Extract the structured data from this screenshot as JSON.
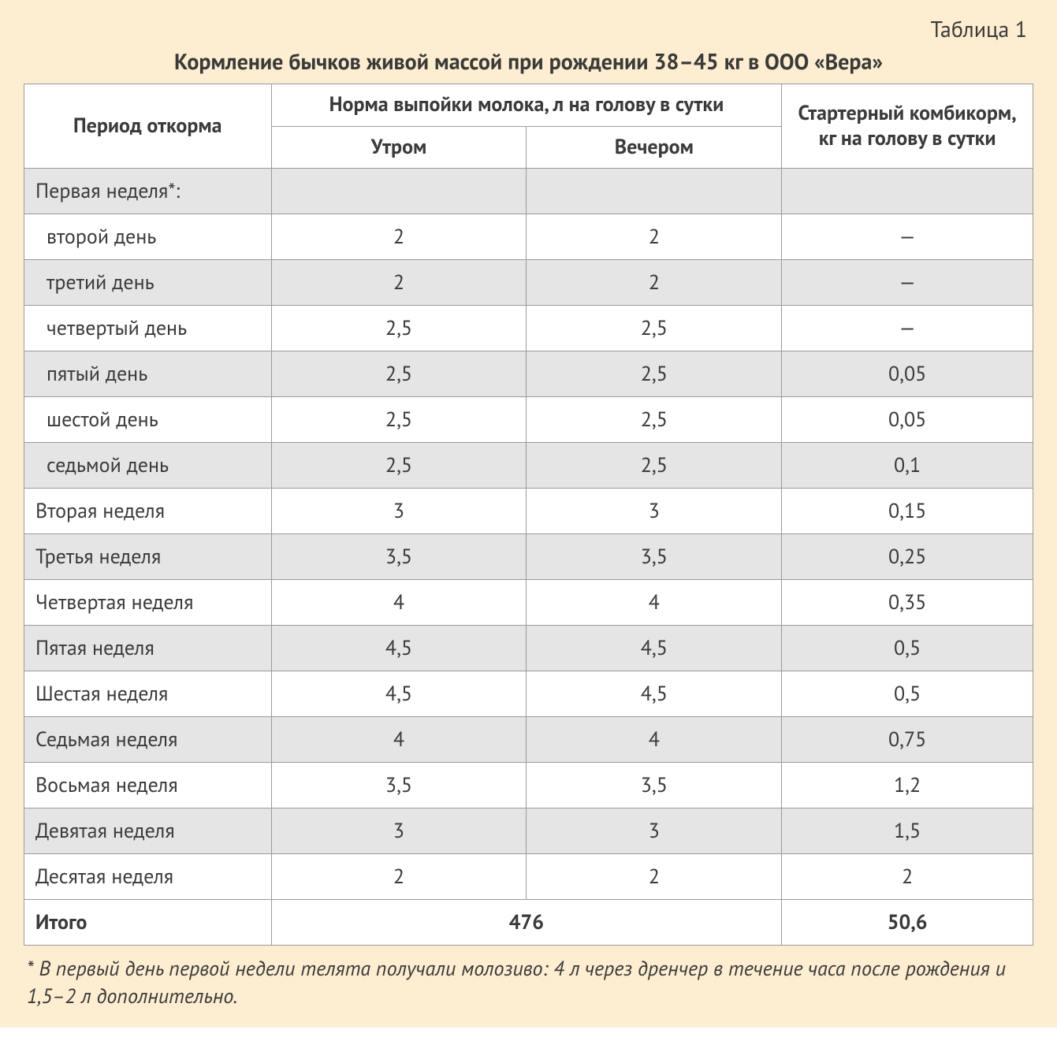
{
  "colors": {
    "page_bg": "#fdeed2",
    "table_bg": "#ffffff",
    "row_shade": "#e5e5e5",
    "border": "#9a9a9a",
    "text": "#3a3a3a"
  },
  "typography": {
    "base_fontsize_pt": 20,
    "header_weight": 700,
    "body_weight": 400,
    "footnote_style": "italic"
  },
  "table": {
    "number_label": "Таблица 1",
    "title": "Кормление бычков живой массой при рождении 38–45 кг в ООО «Вера»",
    "columns": {
      "period": "Период откорма",
      "milk_group": "Норма выпойки молока, л на голову в сутки",
      "morning": "Утром",
      "evening": "Вечером",
      "starter": "Стартерный комбикорм, кг на голову в сутки"
    },
    "col_widths_pct": [
      24.5,
      25.3,
      25.3,
      24.9
    ],
    "rows": [
      {
        "period": "Первая неделя*:",
        "morning": "",
        "evening": "",
        "starter": "",
        "shaded": true,
        "indent": false
      },
      {
        "period": "второй день",
        "morning": "2",
        "evening": "2",
        "starter": "—",
        "shaded": false,
        "indent": true
      },
      {
        "period": "третий день",
        "morning": "2",
        "evening": "2",
        "starter": "—",
        "shaded": true,
        "indent": true
      },
      {
        "period": "четвертый день",
        "morning": "2,5",
        "evening": "2,5",
        "starter": "—",
        "shaded": false,
        "indent": true
      },
      {
        "period": "пятый день",
        "morning": "2,5",
        "evening": "2,5",
        "starter": "0,05",
        "shaded": true,
        "indent": true
      },
      {
        "period": "шестой день",
        "morning": "2,5",
        "evening": "2,5",
        "starter": "0,05",
        "shaded": false,
        "indent": true
      },
      {
        "period": "седьмой день",
        "morning": "2,5",
        "evening": "2,5",
        "starter": "0,1",
        "shaded": true,
        "indent": true
      },
      {
        "period": "Вторая неделя",
        "morning": "3",
        "evening": "3",
        "starter": "0,15",
        "shaded": false,
        "indent": false
      },
      {
        "period": "Третья неделя",
        "morning": "3,5",
        "evening": "3,5",
        "starter": "0,25",
        "shaded": true,
        "indent": false
      },
      {
        "period": "Четвертая неделя",
        "morning": "4",
        "evening": "4",
        "starter": "0,35",
        "shaded": false,
        "indent": false
      },
      {
        "period": "Пятая неделя",
        "morning": "4,5",
        "evening": "4,5",
        "starter": "0,5",
        "shaded": true,
        "indent": false
      },
      {
        "period": "Шестая неделя",
        "morning": "4,5",
        "evening": "4,5",
        "starter": "0,5",
        "shaded": false,
        "indent": false
      },
      {
        "period": "Седьмая неделя",
        "morning": "4",
        "evening": "4",
        "starter": "0,75",
        "shaded": true,
        "indent": false
      },
      {
        "period": "Восьмая неделя",
        "morning": "3,5",
        "evening": "3,5",
        "starter": "1,2",
        "shaded": false,
        "indent": false
      },
      {
        "period": "Девятая неделя",
        "morning": "3",
        "evening": "3",
        "starter": "1,5",
        "shaded": true,
        "indent": false
      },
      {
        "period": "Десятая неделя",
        "morning": "2",
        "evening": "2",
        "starter": "2",
        "shaded": false,
        "indent": false
      }
    ],
    "total": {
      "label": "Итого",
      "milk_total": "476",
      "starter_total": "50,6"
    },
    "footnote": "* В первый день первой недели телята получали молозиво: 4 л через дренчер в течение часа после рождения и 1,5–2 л дополнительно."
  }
}
